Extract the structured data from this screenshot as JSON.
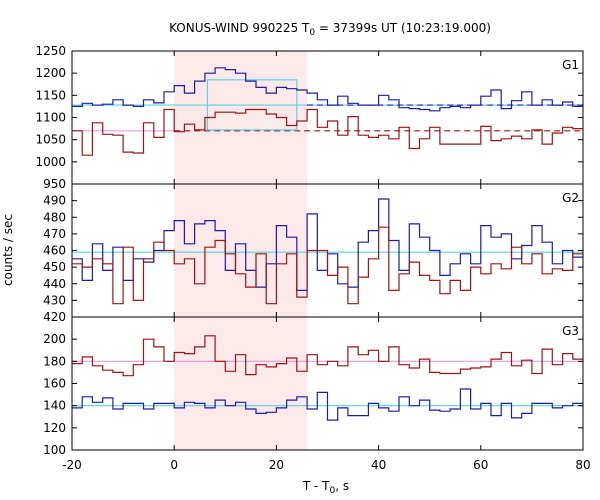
{
  "chart_data": {
    "type": "line",
    "title": "KONUS-WIND 990225 T",
    "title_sub": "0",
    "title_rest": " = 37399s UT (10:23:19.000)",
    "xlabel_main": "T - T",
    "xlabel_sub": "0",
    "xlabel_unit": ", s",
    "ylabel": "counts / sec",
    "xlim": [
      -20,
      80
    ],
    "x_ticks": [
      -20,
      0,
      20,
      40,
      60,
      80
    ],
    "x_tick_labels": [
      "-20",
      "0",
      "20",
      "40",
      "60",
      "80"
    ],
    "highlight_interval": [
      0,
      26
    ],
    "colors": {
      "blue": "#1c1ca8",
      "red": "#9c1414",
      "cyan": "#5ad2e6",
      "pink": "#e699e6",
      "highlight": "#fde8ea"
    },
    "bin_edges": [
      -20,
      -18,
      -16,
      -14,
      -12,
      -10,
      -8,
      -6,
      -4,
      -2,
      0,
      2,
      4,
      6,
      8,
      10,
      12,
      14,
      16,
      18,
      20,
      22,
      24,
      26,
      28,
      30,
      32,
      34,
      36,
      38,
      40,
      42,
      44,
      46,
      48,
      50,
      52,
      54,
      56,
      58,
      60,
      62,
      64,
      66,
      68,
      70,
      72,
      74,
      76,
      78,
      80
    ],
    "panels": [
      {
        "label": "G1",
        "ylim": [
          950,
          1250
        ],
        "y_ticks": [
          950,
          1000,
          1050,
          1100,
          1150,
          1200,
          1250
        ],
        "y_tick_labels": [
          "950",
          "1000",
          "1050",
          "1100",
          "1150",
          "1200",
          "1250"
        ],
        "series": [
          {
            "color": "blue",
            "values": [
              1125,
              1132,
              1128,
              1130,
              1140,
              1128,
              1125,
              1140,
              1133,
              1158,
              1172,
              1155,
              1182,
              1200,
              1212,
              1208,
              1200,
              1182,
              1168,
              1155,
              1168,
              1165,
              1162,
              1155,
              1140,
              1128,
              1148,
              1132,
              1128,
              1128,
              1150,
              1140,
              1122,
              1120,
              1118,
              1115,
              1122,
              1125,
              1122,
              1128,
              1148,
              1162,
              1120,
              1138,
              1158,
              1128,
              1140,
              1128,
              1135,
              1125
            ]
          },
          {
            "color": "red",
            "values": [
              1070,
              1015,
              1088,
              1062,
              1060,
              1022,
              1020,
              1088,
              1055,
              1118,
              1068,
              1085,
              1072,
              1100,
              1112,
              1112,
              1110,
              1118,
              1118,
              1108,
              1100,
              1082,
              1092,
              1118,
              1078,
              1092,
              1060,
              1102,
              1060,
              1055,
              1060,
              1052,
              1078,
              1030,
              1052,
              1078,
              1040,
              1040,
              1040,
              1040,
              1080,
              1048,
              1052,
              1058,
              1052,
              1072,
              1040,
              1065,
              1078,
              1075
            ]
          }
        ],
        "bg_lines": [
          {
            "color": "cyan",
            "from": -20,
            "to": 80,
            "y": 1128,
            "style": "solid"
          },
          {
            "color": "blue",
            "from": 26,
            "to": 80,
            "y": 1128,
            "style": "dashed"
          },
          {
            "color": "pink",
            "from": -20,
            "to": 0,
            "y": 1070,
            "style": "solid"
          },
          {
            "color": "red",
            "from": 0,
            "to": 80,
            "y": 1070,
            "style": "dashed"
          }
        ],
        "box": {
          "color": "cyan",
          "from": 6.5,
          "to": 24,
          "ymin": 1072,
          "ymax": 1185
        }
      },
      {
        "label": "G2",
        "ylim": [
          420,
          500
        ],
        "y_ticks": [
          420,
          430,
          440,
          450,
          460,
          470,
          480,
          490
        ],
        "y_tick_labels": [
          "420",
          "430",
          "440",
          "450",
          "460",
          "470",
          "480",
          "490"
        ],
        "series": [
          {
            "color": "blue",
            "values": [
              455,
              442,
              464,
              448,
              462,
              442,
              455,
              453,
              460,
              472,
              478,
              464,
              476,
              478,
              472,
              448,
              464,
              448,
              438,
              452,
              475,
              468,
              436,
              482,
              448,
              458,
              440,
              438,
              465,
              472,
              491,
              466,
              448,
              476,
              468,
              460,
              445,
              452,
              458,
              452,
              475,
              468,
              470,
              455,
              463,
              475,
              465,
              452,
              460,
              456
            ]
          },
          {
            "color": "red",
            "values": [
              452,
              450,
              455,
              452,
              428,
              462,
              430,
              455,
              465,
              460,
              452,
              455,
              440,
              462,
              466,
              458,
              446,
              438,
              458,
              428,
              452,
              458,
              432,
              460,
              460,
              445,
              450,
              428,
              444,
              455,
              474,
              436,
              446,
              453,
              445,
              442,
              434,
              442,
              436,
              450,
              446,
              452,
              449,
              462,
              452,
              458,
              446,
              449,
              448,
              458
            ]
          }
        ],
        "bg_lines": [
          {
            "color": "cyan",
            "from": -20,
            "to": 80,
            "y": 459,
            "style": "solid"
          }
        ]
      },
      {
        "label": "G3",
        "ylim": [
          100,
          220
        ],
        "y_ticks": [
          100,
          120,
          140,
          160,
          180,
          200
        ],
        "y_tick_labels": [
          "100",
          "120",
          "140",
          "160",
          "180",
          "200"
        ],
        "series": [
          {
            "color": "blue",
            "values": [
              138,
              148,
              143,
              147,
              137,
              142,
              142,
              137,
              142,
              142,
              138,
              143,
              142,
              138,
              145,
              140,
              143,
              137,
              133,
              134,
              138,
              145,
              148,
              137,
              152,
              127,
              138,
              131,
              131,
              142,
              138,
              135,
              148,
              140,
              145,
              136,
              135,
              137,
              155,
              137,
              142,
              131,
              142,
              129,
              133,
              142,
              142,
              138,
              140,
              142
            ]
          },
          {
            "color": "red",
            "values": [
              178,
              184,
              176,
              172,
              170,
              167,
              177,
              200,
              193,
              180,
              188,
              187,
              193,
              203,
              180,
              171,
              186,
              168,
              177,
              175,
              178,
              183,
              171,
              186,
              177,
              180,
              176,
              193,
              186,
              190,
              180,
              193,
              177,
              174,
              182,
              170,
              169,
              169,
              173,
              174,
              175,
              182,
              188,
              176,
              181,
              169,
              191,
              177,
              187,
              182
            ]
          }
        ],
        "bg_lines": [
          {
            "color": "cyan",
            "from": -20,
            "to": 80,
            "y": 140,
            "style": "solid"
          },
          {
            "color": "pink",
            "from": -20,
            "to": 80,
            "y": 180,
            "style": "solid"
          }
        ]
      }
    ]
  }
}
